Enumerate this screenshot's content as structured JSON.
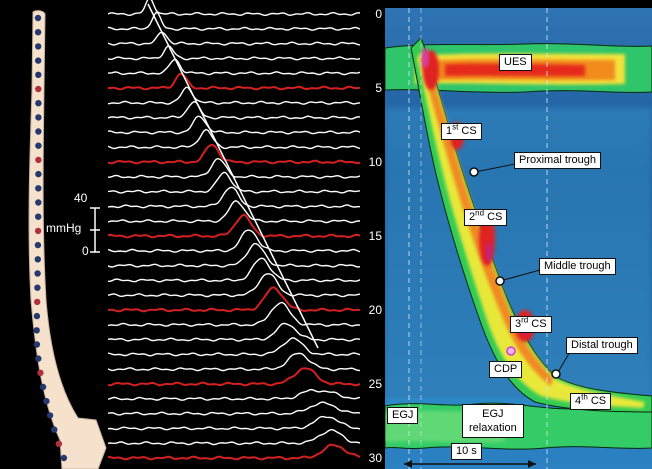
{
  "scale": {
    "top": "40",
    "unit": "mmHg",
    "bottom": "0"
  },
  "sensor_numbers": [
    "0",
    "5",
    "10",
    "15",
    "20",
    "25",
    "30"
  ],
  "labels": {
    "ues": "UES",
    "cs1_num": "1",
    "cs1_sup": "st",
    "cs1_suffix": " CS",
    "cs2_num": "2",
    "cs2_sup": "nd",
    "cs2_suffix": " CS",
    "cs3_num": "3",
    "cs3_sup": "rd",
    "cs3_suffix": " CS",
    "cs4_num": "4",
    "cs4_sup": "th",
    "cs4_suffix": " CS",
    "proximal_trough": "Proximal trough",
    "middle_trough": "Middle trough",
    "distal_trough": "Distal trough",
    "cdp": "CDP",
    "egj": "EGJ",
    "egj_relax_1": "EGJ",
    "egj_relax_2": "relaxation",
    "time": "10 s"
  },
  "colors": {
    "trace": "#ffffff",
    "trace_highlight": "#d42020",
    "background": "#000000",
    "topo_base": "#1f5aa0",
    "topo_hot": "#e02020",
    "isobar": "#0a2a0a",
    "cdp_marker": "#d63cd6"
  }
}
